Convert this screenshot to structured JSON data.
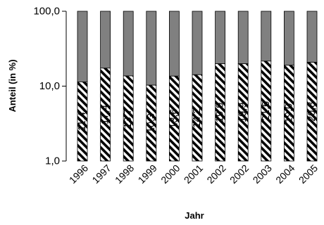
{
  "chart_data": {
    "type": "bar",
    "stacked": true,
    "y_scale": "log",
    "ylim": [
      1.0,
      100.0
    ],
    "y_ticks": [
      "1,0",
      "10,0",
      "100,0"
    ],
    "y_tick_values": [
      1,
      10,
      100
    ],
    "xlabel": "Jahr",
    "ylabel": "Anteil (in %)",
    "categories": [
      "1996",
      "1997",
      "1998",
      "1999",
      "2000",
      "2001",
      "2002",
      "2002",
      "2003",
      "2004",
      "2005"
    ],
    "series": [
      {
        "pattern": "hatched",
        "color": "#000000",
        "values": [
          11.4,
          17.4,
          13.7,
          10.3,
          13.6,
          14.2,
          19.9,
          19.9,
          21.6,
          19.0,
          20.8
        ],
        "labels": [
          "11,4",
          "17,4",
          "13,7",
          "10,3",
          "13,6",
          "14,2",
          "19,9",
          "19,9",
          "21,6",
          "19,0",
          "20,8"
        ]
      },
      {
        "pattern": "solid",
        "color": "#808080",
        "values": [
          88.6,
          82.6,
          86.3,
          89.7,
          86.4,
          85.8,
          80.1,
          80.1,
          78.4,
          81.0,
          79.2
        ]
      }
    ],
    "grid": false,
    "legend": "none"
  }
}
